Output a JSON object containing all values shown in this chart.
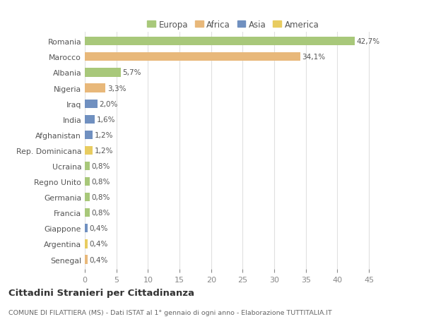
{
  "countries": [
    "Romania",
    "Marocco",
    "Albania",
    "Nigeria",
    "Iraq",
    "India",
    "Afghanistan",
    "Rep. Dominicana",
    "Ucraina",
    "Regno Unito",
    "Germania",
    "Francia",
    "Giappone",
    "Argentina",
    "Senegal"
  ],
  "values": [
    42.7,
    34.1,
    5.7,
    3.3,
    2.0,
    1.6,
    1.2,
    1.2,
    0.8,
    0.8,
    0.8,
    0.8,
    0.4,
    0.4,
    0.4
  ],
  "labels": [
    "42,7%",
    "34,1%",
    "5,7%",
    "3,3%",
    "2,0%",
    "1,6%",
    "1,2%",
    "1,2%",
    "0,8%",
    "0,8%",
    "0,8%",
    "0,8%",
    "0,4%",
    "0,4%",
    "0,4%"
  ],
  "continents": [
    "Europa",
    "Africa",
    "Europa",
    "Africa",
    "Asia",
    "Asia",
    "Asia",
    "America",
    "Europa",
    "Europa",
    "Europa",
    "Europa",
    "Asia",
    "America",
    "Africa"
  ],
  "colors": {
    "Europa": "#a8c87a",
    "Africa": "#e8b87a",
    "Asia": "#7090c0",
    "America": "#e8cc60"
  },
  "legend_order": [
    "Europa",
    "Africa",
    "Asia",
    "America"
  ],
  "title": "Cittadini Stranieri per Cittadinanza",
  "subtitle": "COMUNE DI FILATTIERA (MS) - Dati ISTAT al 1° gennaio di ogni anno - Elaborazione TUTTITALIA.IT",
  "xlim": [
    0,
    47
  ],
  "xticks": [
    0,
    5,
    10,
    15,
    20,
    25,
    30,
    35,
    40,
    45
  ],
  "background_color": "#ffffff",
  "grid_color": "#e0e0e0"
}
